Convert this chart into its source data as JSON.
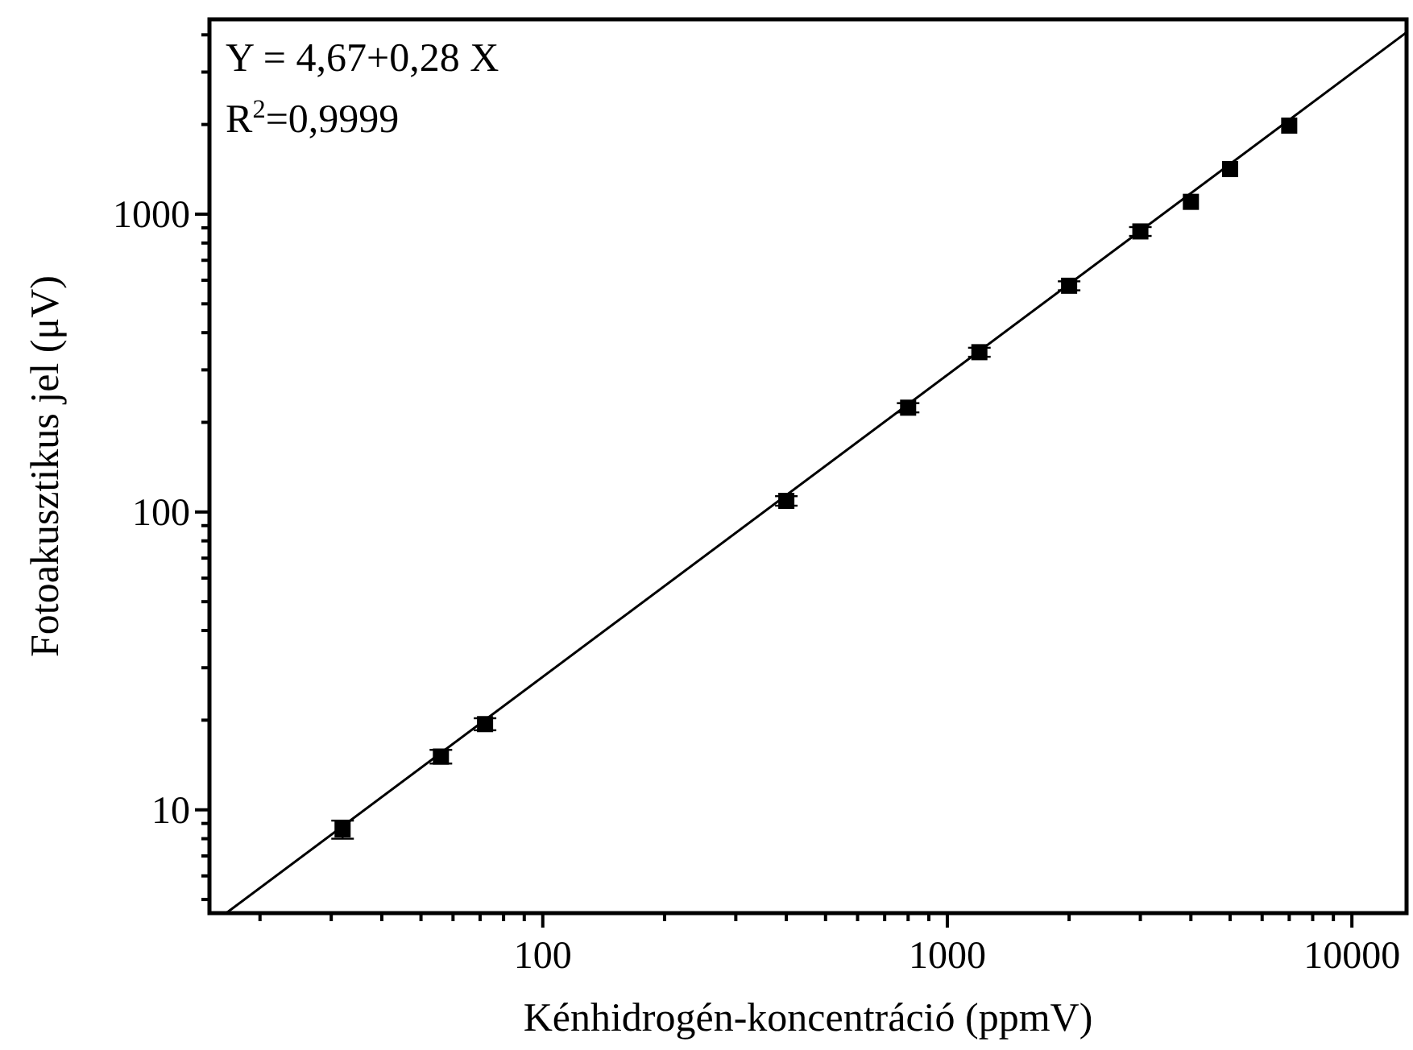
{
  "chart_data": {
    "type": "scatter",
    "xlabel": "Kénhidrogén-koncentráció (ppmV)",
    "ylabel": "Fotoakusztikus jel (μV)",
    "log": "xy",
    "marker": "square",
    "grid": false,
    "annotations": [
      "Y = 4,67+0,28 X",
      "R$^{2}$=0,9999"
    ],
    "xlim": [
      15,
      13650
    ],
    "ylim": [
      4.5,
      4510
    ],
    "xticks": [
      {
        "value": 20,
        "label": null
      },
      {
        "value": 30,
        "label": null
      },
      {
        "value": 40,
        "label": null
      },
      {
        "value": 50,
        "label": null
      },
      {
        "value": 60,
        "label": null
      },
      {
        "value": 70,
        "label": null
      },
      {
        "value": 80,
        "label": null
      },
      {
        "value": 90,
        "label": null
      },
      100,
      {
        "value": 200,
        "label": null
      },
      {
        "value": 300,
        "label": null
      },
      {
        "value": 400,
        "label": null
      },
      {
        "value": 500,
        "label": null
      },
      {
        "value": 600,
        "label": null
      },
      {
        "value": 700,
        "label": null
      },
      {
        "value": 800,
        "label": null
      },
      {
        "value": 900,
        "label": null
      },
      1000,
      {
        "value": 2000,
        "label": null
      },
      {
        "value": 3000,
        "label": null
      },
      {
        "value": 4000,
        "label": null
      },
      {
        "value": 5000,
        "label": null
      },
      {
        "value": 6000,
        "label": null
      },
      {
        "value": 7000,
        "label": null
      },
      {
        "value": 8000,
        "label": null
      },
      {
        "value": 9000,
        "label": null
      },
      10000
    ],
    "yticks": [
      {
        "value": 5,
        "label": null
      },
      {
        "value": 6,
        "label": null
      },
      {
        "value": 7,
        "label": null
      },
      {
        "value": 8,
        "label": null
      },
      {
        "value": 9,
        "label": null
      },
      10,
      {
        "value": 20,
        "label": null
      },
      {
        "value": 30,
        "label": null
      },
      {
        "value": 40,
        "label": null
      },
      {
        "value": 50,
        "label": null
      },
      {
        "value": 60,
        "label": null
      },
      {
        "value": 70,
        "label": null
      },
      {
        "value": 80,
        "label": null
      },
      {
        "value": 90,
        "label": null
      },
      100,
      {
        "value": 200,
        "label": null
      },
      {
        "value": 300,
        "label": null
      },
      {
        "value": 400,
        "label": null
      },
      {
        "value": 500,
        "label": null
      },
      {
        "value": 600,
        "label": null
      },
      {
        "value": 700,
        "label": null
      },
      {
        "value": 800,
        "label": null
      },
      {
        "value": 900,
        "label": null
      },
      1000,
      {
        "value": 2000,
        "label": null
      },
      {
        "value": 3000,
        "label": null
      },
      {
        "value": 4000,
        "label": null
      }
    ],
    "series": [
      {
        "type": "line",
        "color": "#000000",
        "marker": "none",
        "line_style": "solid",
        "x": [
          16.5,
          13650
        ],
        "values": [
          4.5,
          4080
        ]
      },
      {
        "color": "#000000",
        "x": [
          32,
          56,
          72,
          400,
          800,
          1200,
          2000,
          3000,
          4000,
          5000,
          7000
        ],
        "values": [
          8.6,
          15.1,
          19.4,
          109,
          224,
          344,
          575,
          875,
          1100,
          1417,
          1983
        ],
        "errors": [
          0.6,
          0.8,
          0.9,
          4,
          8,
          12,
          20,
          30,
          null,
          null,
          null
        ]
      }
    ]
  }
}
